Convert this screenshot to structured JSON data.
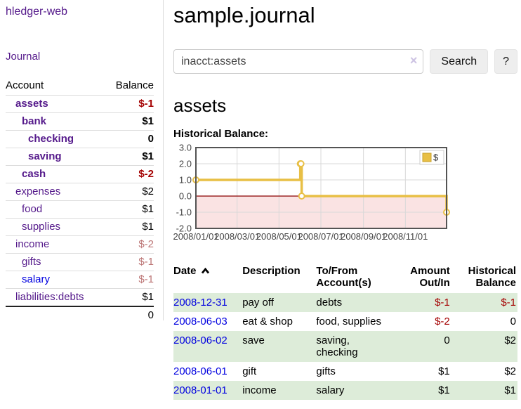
{
  "brand": "hledger-web",
  "nav": {
    "journal": "Journal"
  },
  "sidebar": {
    "header": {
      "account": "Account",
      "balance": "Balance"
    },
    "rows": [
      {
        "name": "assets",
        "balance": "$-1",
        "indent": 0,
        "bold": true,
        "tone": "strong"
      },
      {
        "name": "bank",
        "balance": "$1",
        "indent": 1,
        "bold": true,
        "tone": ""
      },
      {
        "name": "checking",
        "balance": "0",
        "indent": 2,
        "bold": true,
        "tone": ""
      },
      {
        "name": "saving",
        "balance": "$1",
        "indent": 2,
        "bold": true,
        "tone": ""
      },
      {
        "name": "cash",
        "balance": "$-2",
        "indent": 1,
        "bold": true,
        "tone": "strong"
      },
      {
        "name": "expenses",
        "balance": "$2",
        "indent": 0,
        "bold": false,
        "tone": ""
      },
      {
        "name": "food",
        "balance": "$1",
        "indent": 1,
        "bold": false,
        "tone": ""
      },
      {
        "name": "supplies",
        "balance": "$1",
        "indent": 1,
        "bold": false,
        "tone": ""
      },
      {
        "name": "income",
        "balance": "$-2",
        "indent": 0,
        "bold": false,
        "tone": "muted"
      },
      {
        "name": "gifts",
        "balance": "$-1",
        "indent": 1,
        "bold": false,
        "tone": "muted"
      },
      {
        "name": "salary",
        "balance": "$-1",
        "indent": 1,
        "bold": false,
        "tone": "muted",
        "link": "blue"
      },
      {
        "name": "liabilities:debts",
        "balance": "$1",
        "indent": 0,
        "bold": false,
        "tone": ""
      }
    ],
    "total": "0"
  },
  "main": {
    "title": "sample.journal",
    "search": {
      "value": "inacct:assets",
      "clear": "×",
      "search_label": "Search",
      "help_label": "?"
    },
    "account_heading": "assets",
    "chart_heading": "Historical Balance:"
  },
  "register": {
    "headers": {
      "date": "Date",
      "description": "Description",
      "tofrom": "To/From Account(s)",
      "amount": "Amount Out/In",
      "historical": "Historical Balance"
    },
    "rows": [
      {
        "date": "2008-12-31",
        "description": "pay off",
        "accounts": "debts",
        "amount": "$-1",
        "balance": "$-1",
        "amount_neg": true,
        "balance_neg": true
      },
      {
        "date": "2008-06-03",
        "description": "eat & shop",
        "accounts": "food, supplies",
        "amount": "$-2",
        "balance": "0",
        "amount_neg": true,
        "balance_neg": false
      },
      {
        "date": "2008-06-02",
        "description": "save",
        "accounts": "saving, checking",
        "amount": "0",
        "balance": "$2",
        "amount_neg": false,
        "balance_neg": false
      },
      {
        "date": "2008-06-01",
        "description": "gift",
        "accounts": "gifts",
        "amount": "$1",
        "balance": "$2",
        "amount_neg": false,
        "balance_neg": false
      },
      {
        "date": "2008-01-01",
        "description": "income",
        "accounts": "salary",
        "amount": "$1",
        "balance": "$1",
        "amount_neg": false,
        "balance_neg": false
      }
    ]
  },
  "chart_data": {
    "type": "line",
    "step": true,
    "title": "Historical Balance",
    "series": [
      {
        "name": "$",
        "color": "#e8bf45",
        "points": [
          [
            "2008-01-01",
            1
          ],
          [
            "2008-06-01",
            2
          ],
          [
            "2008-06-02",
            2
          ],
          [
            "2008-06-03",
            0
          ],
          [
            "2008-12-31",
            -1
          ]
        ]
      }
    ],
    "x_range": [
      "2008-01-01",
      "2008-12-31"
    ],
    "ylim": [
      -2,
      3
    ],
    "y_ticks": [
      {
        "value": 3,
        "label": "3.0"
      },
      {
        "value": 2,
        "label": "2.0"
      },
      {
        "value": 1,
        "label": "1.0"
      },
      {
        "value": 0,
        "label": "0.0"
      },
      {
        "value": -1,
        "label": "-1.0"
      },
      {
        "value": -2,
        "label": "-2.0"
      }
    ],
    "x_ticks": [
      {
        "date": "2008-01-01",
        "label": "2008/01/01"
      },
      {
        "date": "2008-03-01",
        "label": "2008/03/01"
      },
      {
        "date": "2008-05-01",
        "label": "2008/05/01"
      },
      {
        "date": "2008-07-01",
        "label": "2008/07/01"
      },
      {
        "date": "2008-09-01",
        "label": "2008/09/01"
      },
      {
        "date": "2008-11-01",
        "label": "2008/11/01"
      }
    ],
    "legend": {
      "label": "$",
      "position": "top-right"
    },
    "grid": true,
    "grid_color": "#d8d8d8",
    "border_color": "#545454",
    "zero_line_color": "#8b0000",
    "negative_region_fill": "#fae3e3",
    "marker_fill": "#ffffff",
    "axis_label_color": "#444444"
  }
}
